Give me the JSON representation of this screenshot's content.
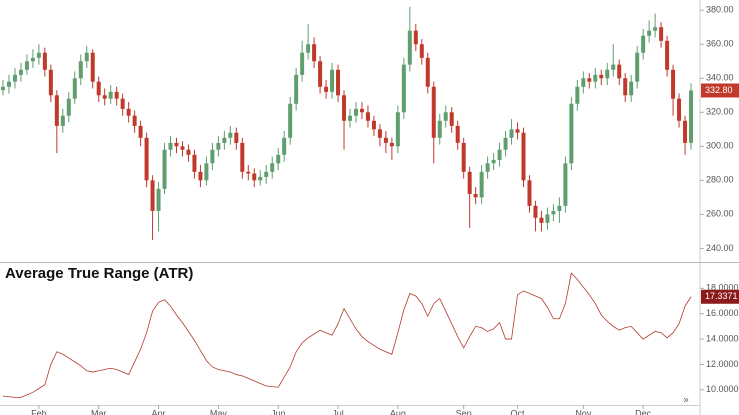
{
  "chart_data": [
    {
      "type": "candlestick",
      "xlim": [
        -0.5,
        116.5
      ],
      "ylim": [
        232,
        386
      ],
      "yticks": [
        {
          "value": 240,
          "label": "240.00"
        },
        {
          "value": 260,
          "label": "260.00"
        },
        {
          "value": 280,
          "label": "280.00"
        },
        {
          "value": 300,
          "label": "300.00"
        },
        {
          "value": 320,
          "label": "320.00"
        },
        {
          "value": 340,
          "label": "340.00"
        },
        {
          "value": 360,
          "label": "360.00"
        },
        {
          "value": 380,
          "label": "380.00"
        }
      ],
      "up_color": "#5f9e6e",
      "down_color": "#c0392b",
      "last_label": "332.80",
      "open": [
        333,
        335,
        338,
        342,
        345,
        350,
        352,
        355,
        345,
        330,
        312,
        318,
        328,
        340,
        350,
        355,
        338,
        330,
        328,
        332,
        328,
        322,
        318,
        312,
        305,
        280,
        262,
        275,
        298,
        302,
        300,
        298,
        295,
        285,
        280,
        290,
        298,
        302,
        305,
        308,
        302,
        285,
        284,
        280,
        282,
        285,
        290,
        295,
        305,
        325,
        342,
        355,
        360,
        350,
        335,
        332,
        345,
        330,
        315,
        318,
        322,
        320,
        315,
        310,
        305,
        302,
        300,
        320,
        348,
        368,
        360,
        352,
        335,
        305,
        315,
        320,
        312,
        302,
        285,
        272,
        270,
        285,
        290,
        292,
        298,
        305,
        310,
        308,
        280,
        265,
        258,
        255,
        260,
        262,
        265,
        290,
        325,
        335,
        340,
        338,
        342,
        340,
        345,
        348,
        340,
        330,
        338,
        355,
        365,
        368,
        370,
        362,
        345,
        328,
        315,
        302
      ],
      "high": [
        339,
        342,
        346,
        349,
        354,
        357,
        360,
        358,
        348,
        333,
        322,
        332,
        344,
        354,
        359,
        357,
        341,
        334,
        336,
        335,
        331,
        326,
        321,
        315,
        308,
        283,
        279,
        302,
        306,
        305,
        303,
        301,
        298,
        289,
        294,
        302,
        306,
        309,
        312,
        311,
        305,
        289,
        287,
        286,
        289,
        294,
        299,
        309,
        329,
        346,
        362,
        372,
        364,
        353,
        339,
        349,
        348,
        333,
        322,
        326,
        326,
        324,
        318,
        313,
        309,
        305,
        324,
        352,
        382,
        372,
        363,
        355,
        338,
        319,
        324,
        323,
        315,
        305,
        288,
        276,
        289,
        294,
        296,
        302,
        309,
        316,
        314,
        311,
        283,
        268,
        262,
        264,
        266,
        270,
        294,
        329,
        339,
        344,
        343,
        346,
        345,
        349,
        360,
        351,
        343,
        342,
        359,
        369,
        374,
        378,
        373,
        365,
        348,
        331,
        318,
        337
      ],
      "low": [
        330,
        331,
        334,
        338,
        342,
        346,
        348,
        341,
        326,
        296,
        308,
        314,
        325,
        336,
        346,
        334,
        326,
        324,
        325,
        324,
        318,
        314,
        308,
        300,
        276,
        245,
        250,
        272,
        294,
        296,
        294,
        291,
        281,
        276,
        277,
        286,
        294,
        298,
        301,
        298,
        281,
        280,
        276,
        277,
        278,
        281,
        286,
        291,
        301,
        321,
        338,
        351,
        346,
        331,
        328,
        328,
        326,
        298,
        311,
        314,
        316,
        311,
        306,
        300,
        296,
        292,
        296,
        316,
        344,
        356,
        348,
        331,
        290,
        301,
        311,
        308,
        298,
        281,
        252,
        266,
        266,
        281,
        286,
        288,
        294,
        301,
        304,
        276,
        261,
        250,
        250,
        251,
        256,
        255,
        261,
        286,
        321,
        331,
        334,
        334,
        336,
        336,
        341,
        336,
        326,
        326,
        334,
        351,
        361,
        364,
        358,
        341,
        318,
        311,
        295,
        298
      ],
      "close": [
        335,
        338,
        342,
        345,
        350,
        352,
        355,
        345,
        330,
        312,
        318,
        328,
        340,
        350,
        355,
        338,
        330,
        328,
        332,
        328,
        322,
        318,
        312,
        305,
        280,
        262,
        275,
        298,
        302,
        300,
        298,
        295,
        285,
        280,
        290,
        298,
        302,
        305,
        308,
        302,
        285,
        284,
        280,
        282,
        285,
        290,
        295,
        305,
        325,
        342,
        355,
        360,
        350,
        335,
        332,
        345,
        330,
        315,
        318,
        322,
        320,
        315,
        310,
        305,
        302,
        300,
        320,
        348,
        368,
        360,
        352,
        335,
        305,
        315,
        320,
        312,
        302,
        285,
        272,
        270,
        285,
        290,
        292,
        298,
        305,
        310,
        308,
        280,
        265,
        258,
        255,
        260,
        262,
        265,
        290,
        325,
        335,
        340,
        338,
        342,
        340,
        345,
        348,
        340,
        330,
        338,
        355,
        365,
        368,
        370,
        362,
        345,
        328,
        315,
        302,
        332.8
      ]
    },
    {
      "type": "line",
      "title": "Average True Range (ATR)",
      "color": "#b03a2e",
      "xlim": [
        -0.5,
        116.5
      ],
      "ylim": [
        8.8,
        20
      ],
      "yticks": [
        {
          "value": 10,
          "label": "10.0000"
        },
        {
          "value": 12,
          "label": "12.0000"
        },
        {
          "value": 14,
          "label": "14.0000"
        },
        {
          "value": 16,
          "label": "16.0000"
        },
        {
          "value": 18,
          "label": "18.0000"
        }
      ],
      "xticks": [
        {
          "value": 6,
          "label": "Feb"
        },
        {
          "value": 16,
          "label": "Mar"
        },
        {
          "value": 26,
          "label": "Apr"
        },
        {
          "value": 36,
          "label": "May"
        },
        {
          "value": 46,
          "label": "Jun"
        },
        {
          "value": 56,
          "label": "Jul"
        },
        {
          "value": 66,
          "label": "Aug"
        },
        {
          "value": 77,
          "label": "Sep"
        },
        {
          "value": 86,
          "label": "Oct"
        },
        {
          "value": 97,
          "label": "Nov"
        },
        {
          "value": 107,
          "label": "Dec"
        }
      ],
      "last_label": "17.3371",
      "values": [
        9.5,
        9.45,
        9.4,
        9.4,
        9.6,
        9.8,
        10.1,
        10.4,
        12.0,
        13.0,
        12.8,
        12.5,
        12.2,
        11.9,
        11.5,
        11.4,
        11.5,
        11.6,
        11.7,
        11.6,
        11.4,
        11.2,
        12.2,
        13.2,
        14.5,
        16.2,
        16.9,
        17.1,
        16.6,
        15.9,
        15.3,
        14.6,
        13.9,
        13.1,
        12.3,
        11.8,
        11.6,
        11.5,
        11.4,
        11.2,
        11.1,
        10.9,
        10.7,
        10.5,
        10.3,
        10.25,
        10.2,
        11.0,
        11.8,
        13.0,
        13.7,
        14.1,
        14.4,
        14.7,
        14.5,
        14.3,
        15.2,
        16.4,
        15.6,
        14.8,
        14.2,
        13.8,
        13.5,
        13.2,
        13.0,
        12.8,
        14.5,
        16.3,
        17.6,
        17.4,
        16.8,
        15.8,
        16.8,
        17.2,
        16.2,
        15.2,
        14.2,
        13.3,
        14.2,
        15.0,
        14.9,
        14.6,
        14.8,
        15.3,
        14.0,
        14.0,
        17.5,
        17.8,
        17.6,
        17.4,
        17.2,
        16.5,
        15.6,
        15.6,
        16.8,
        19.2,
        18.7,
        18.1,
        17.5,
        16.8,
        15.9,
        15.4,
        15.0,
        14.7,
        14.9,
        15.0,
        14.5,
        14.0,
        14.3,
        14.6,
        14.5,
        14.1,
        14.5,
        15.2,
        16.6,
        17.3371
      ]
    }
  ]
}
